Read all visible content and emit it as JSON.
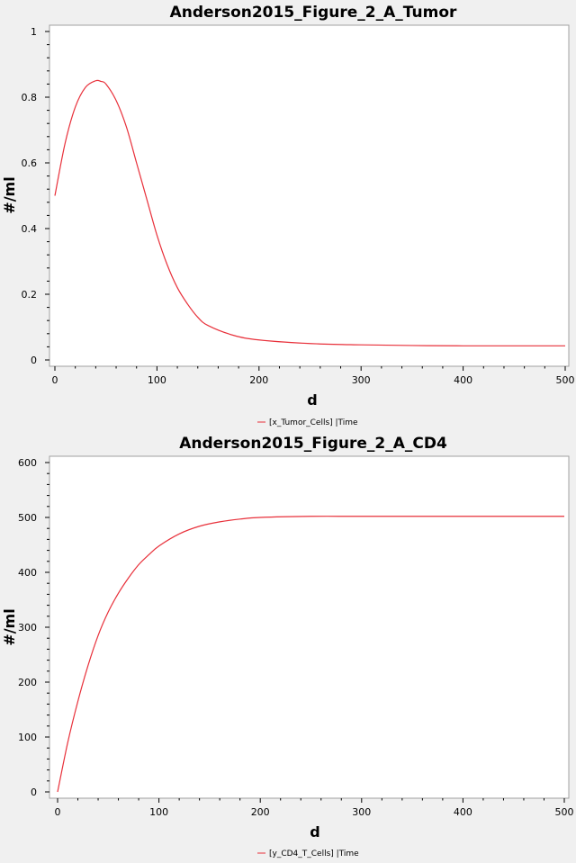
{
  "chart_data": [
    {
      "type": "line",
      "title": "Anderson2015_Figure_2_A_Tumor",
      "xlabel": "d",
      "ylabel": "#/ml",
      "xlim": [
        0,
        500
      ],
      "ylim": [
        0,
        1
      ],
      "xticks": [
        "0",
        "100",
        "200",
        "300",
        "400",
        "500"
      ],
      "yticks": [
        "0",
        "0.2",
        "0.4",
        "0.6",
        "0.8",
        "1"
      ],
      "grid": false,
      "legend_position": "bottom-center",
      "series": [
        {
          "name": "[x_Tumor_Cells] |Time",
          "color": "#e8303a",
          "x": [
            0,
            10,
            20,
            30,
            40,
            45,
            50,
            60,
            70,
            80,
            90,
            100,
            110,
            120,
            130,
            140,
            150,
            175,
            200,
            250,
            300,
            350,
            400,
            500
          ],
          "y": [
            0.5,
            0.66,
            0.77,
            0.83,
            0.85,
            0.848,
            0.84,
            0.79,
            0.71,
            0.6,
            0.49,
            0.38,
            0.29,
            0.22,
            0.17,
            0.13,
            0.105,
            0.075,
            0.061,
            0.05,
            0.046,
            0.044,
            0.043,
            0.043
          ]
        }
      ]
    },
    {
      "type": "line",
      "title": "Anderson2015_Figure_2_A_CD4",
      "xlabel": "d",
      "ylabel": "#/ml",
      "xlim": [
        0,
        500
      ],
      "ylim": [
        0,
        600
      ],
      "xticks": [
        "0",
        "100",
        "200",
        "300",
        "400",
        "500"
      ],
      "yticks": [
        "0",
        "100",
        "200",
        "300",
        "400",
        "500",
        "600"
      ],
      "grid": false,
      "legend_position": "bottom-center",
      "series": [
        {
          "name": "[y_CD4_T_Cells] |Time",
          "color": "#e8303a",
          "x": [
            0,
            10,
            20,
            30,
            40,
            50,
            60,
            70,
            80,
            90,
            100,
            120,
            140,
            160,
            180,
            200,
            250,
            300,
            400,
            500
          ],
          "y": [
            0,
            90,
            165,
            230,
            285,
            328,
            362,
            390,
            414,
            432,
            448,
            470,
            484,
            492,
            497,
            500,
            502,
            502,
            502,
            502
          ]
        }
      ]
    }
  ]
}
